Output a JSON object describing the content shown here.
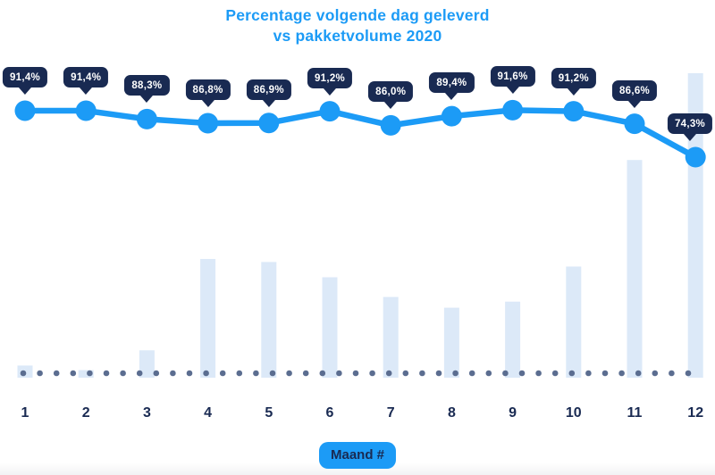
{
  "title": {
    "line1": "Percentage volgende dag geleverd",
    "line2": "vs pakketvolume 2020"
  },
  "colors": {
    "brand_blue": "#1C9BF6",
    "navy": "#192A52",
    "bar_fill": "#DCE9F8",
    "baseline_dot": "#5B6D90",
    "tooltip_text": "#FFFFFF",
    "bottom_fade": "#F2F3F4"
  },
  "chart_data": {
    "type": "line",
    "title": "Percentage volgende dag geleverd vs pakketvolume 2020",
    "categories": [
      "1",
      "2",
      "3",
      "4",
      "5",
      "6",
      "7",
      "8",
      "9",
      "10",
      "11",
      "12"
    ],
    "xlabel": "Maand #",
    "ylabel": "",
    "legend_position": "none",
    "grid": "dotted baseline only",
    "series": [
      {
        "name": "Percentage volgende dag geleverd",
        "type": "line",
        "unit": "%",
        "values": [
          91.4,
          91.4,
          88.3,
          86.8,
          86.9,
          91.2,
          86.0,
          89.4,
          91.6,
          91.2,
          86.6,
          74.3
        ],
        "labels": [
          "91,4%",
          "91,4%",
          "88,3%",
          "86,8%",
          "86,9%",
          "91,2%",
          "86,0%",
          "89,4%",
          "91,6%",
          "91,2%",
          "86,6%",
          "74,3%"
        ]
      },
      {
        "name": "Pakketvolume 2020",
        "type": "bar",
        "unit": "% of max volume (estimated, no axis shown)",
        "values": [
          4,
          2.5,
          9,
          39,
          38,
          33,
          26.5,
          23,
          25,
          36.5,
          71.5,
          100
        ]
      }
    ]
  }
}
